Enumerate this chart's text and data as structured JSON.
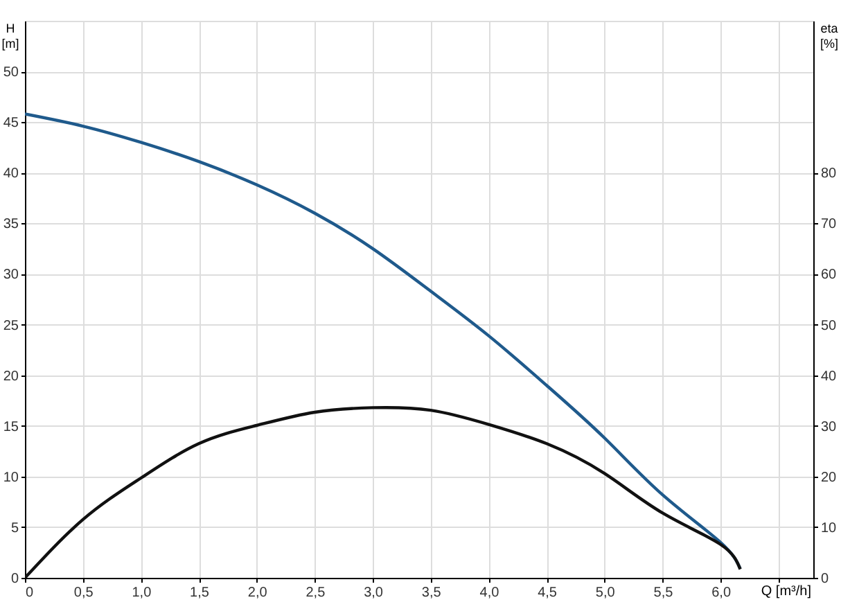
{
  "chart_data": {
    "type": "line",
    "xlabel": "Q [m³/h]",
    "ylabel": "H [m]",
    "y2label": "eta [%]",
    "x": [
      0,
      0.5,
      1.0,
      1.5,
      2.0,
      2.5,
      3.0,
      3.5,
      4.0,
      4.5,
      5.0,
      5.5,
      6.0,
      6.17
    ],
    "series": [
      {
        "color": "#1f5a8c",
        "values": [
          45.8,
          44.6,
          43.0,
          41.1,
          38.8,
          36.0,
          32.5,
          28.3,
          23.9,
          19.0,
          13.8,
          8.2,
          3.5,
          0.9
        ]
      },
      {
        "color": "#111111",
        "axis": "y2",
        "values": [
          0,
          11.5,
          19.7,
          26.5,
          30.1,
          32.7,
          33.6,
          33.1,
          30.3,
          26.5,
          20.6,
          12.8,
          6.6,
          1.7
        ]
      }
    ],
    "xlim": [
      0,
      6.8
    ],
    "xticks": [
      0,
      {
        "value": 0.5,
        "label": "0,5"
      },
      {
        "value": 1.0,
        "label": "1,0"
      },
      {
        "value": 1.5,
        "label": "1,5"
      },
      {
        "value": 2.0,
        "label": "2,0"
      },
      {
        "value": 2.5,
        "label": "2,5"
      },
      {
        "value": 3.0,
        "label": "3,0"
      },
      {
        "value": 3.5,
        "label": "3,5"
      },
      {
        "value": 4.0,
        "label": "4,0"
      },
      {
        "value": 4.5,
        "label": "4,5"
      },
      {
        "value": 5.0,
        "label": "5,0"
      },
      {
        "value": 5.5,
        "label": "5,5"
      },
      {
        "value": 6.0,
        "label": "6,0"
      },
      {
        "value": 6.5,
        "label": null
      }
    ],
    "ylim": [
      0,
      55
    ],
    "yticks": [
      0,
      5,
      10,
      15,
      20,
      25,
      30,
      35,
      40,
      45,
      50
    ],
    "y2lim": [
      0,
      110
    ],
    "y2ticks": [
      0,
      10,
      20,
      30,
      40,
      50,
      60,
      70,
      80
    ],
    "grid": true,
    "marker": "none",
    "line_style": "solid"
  }
}
